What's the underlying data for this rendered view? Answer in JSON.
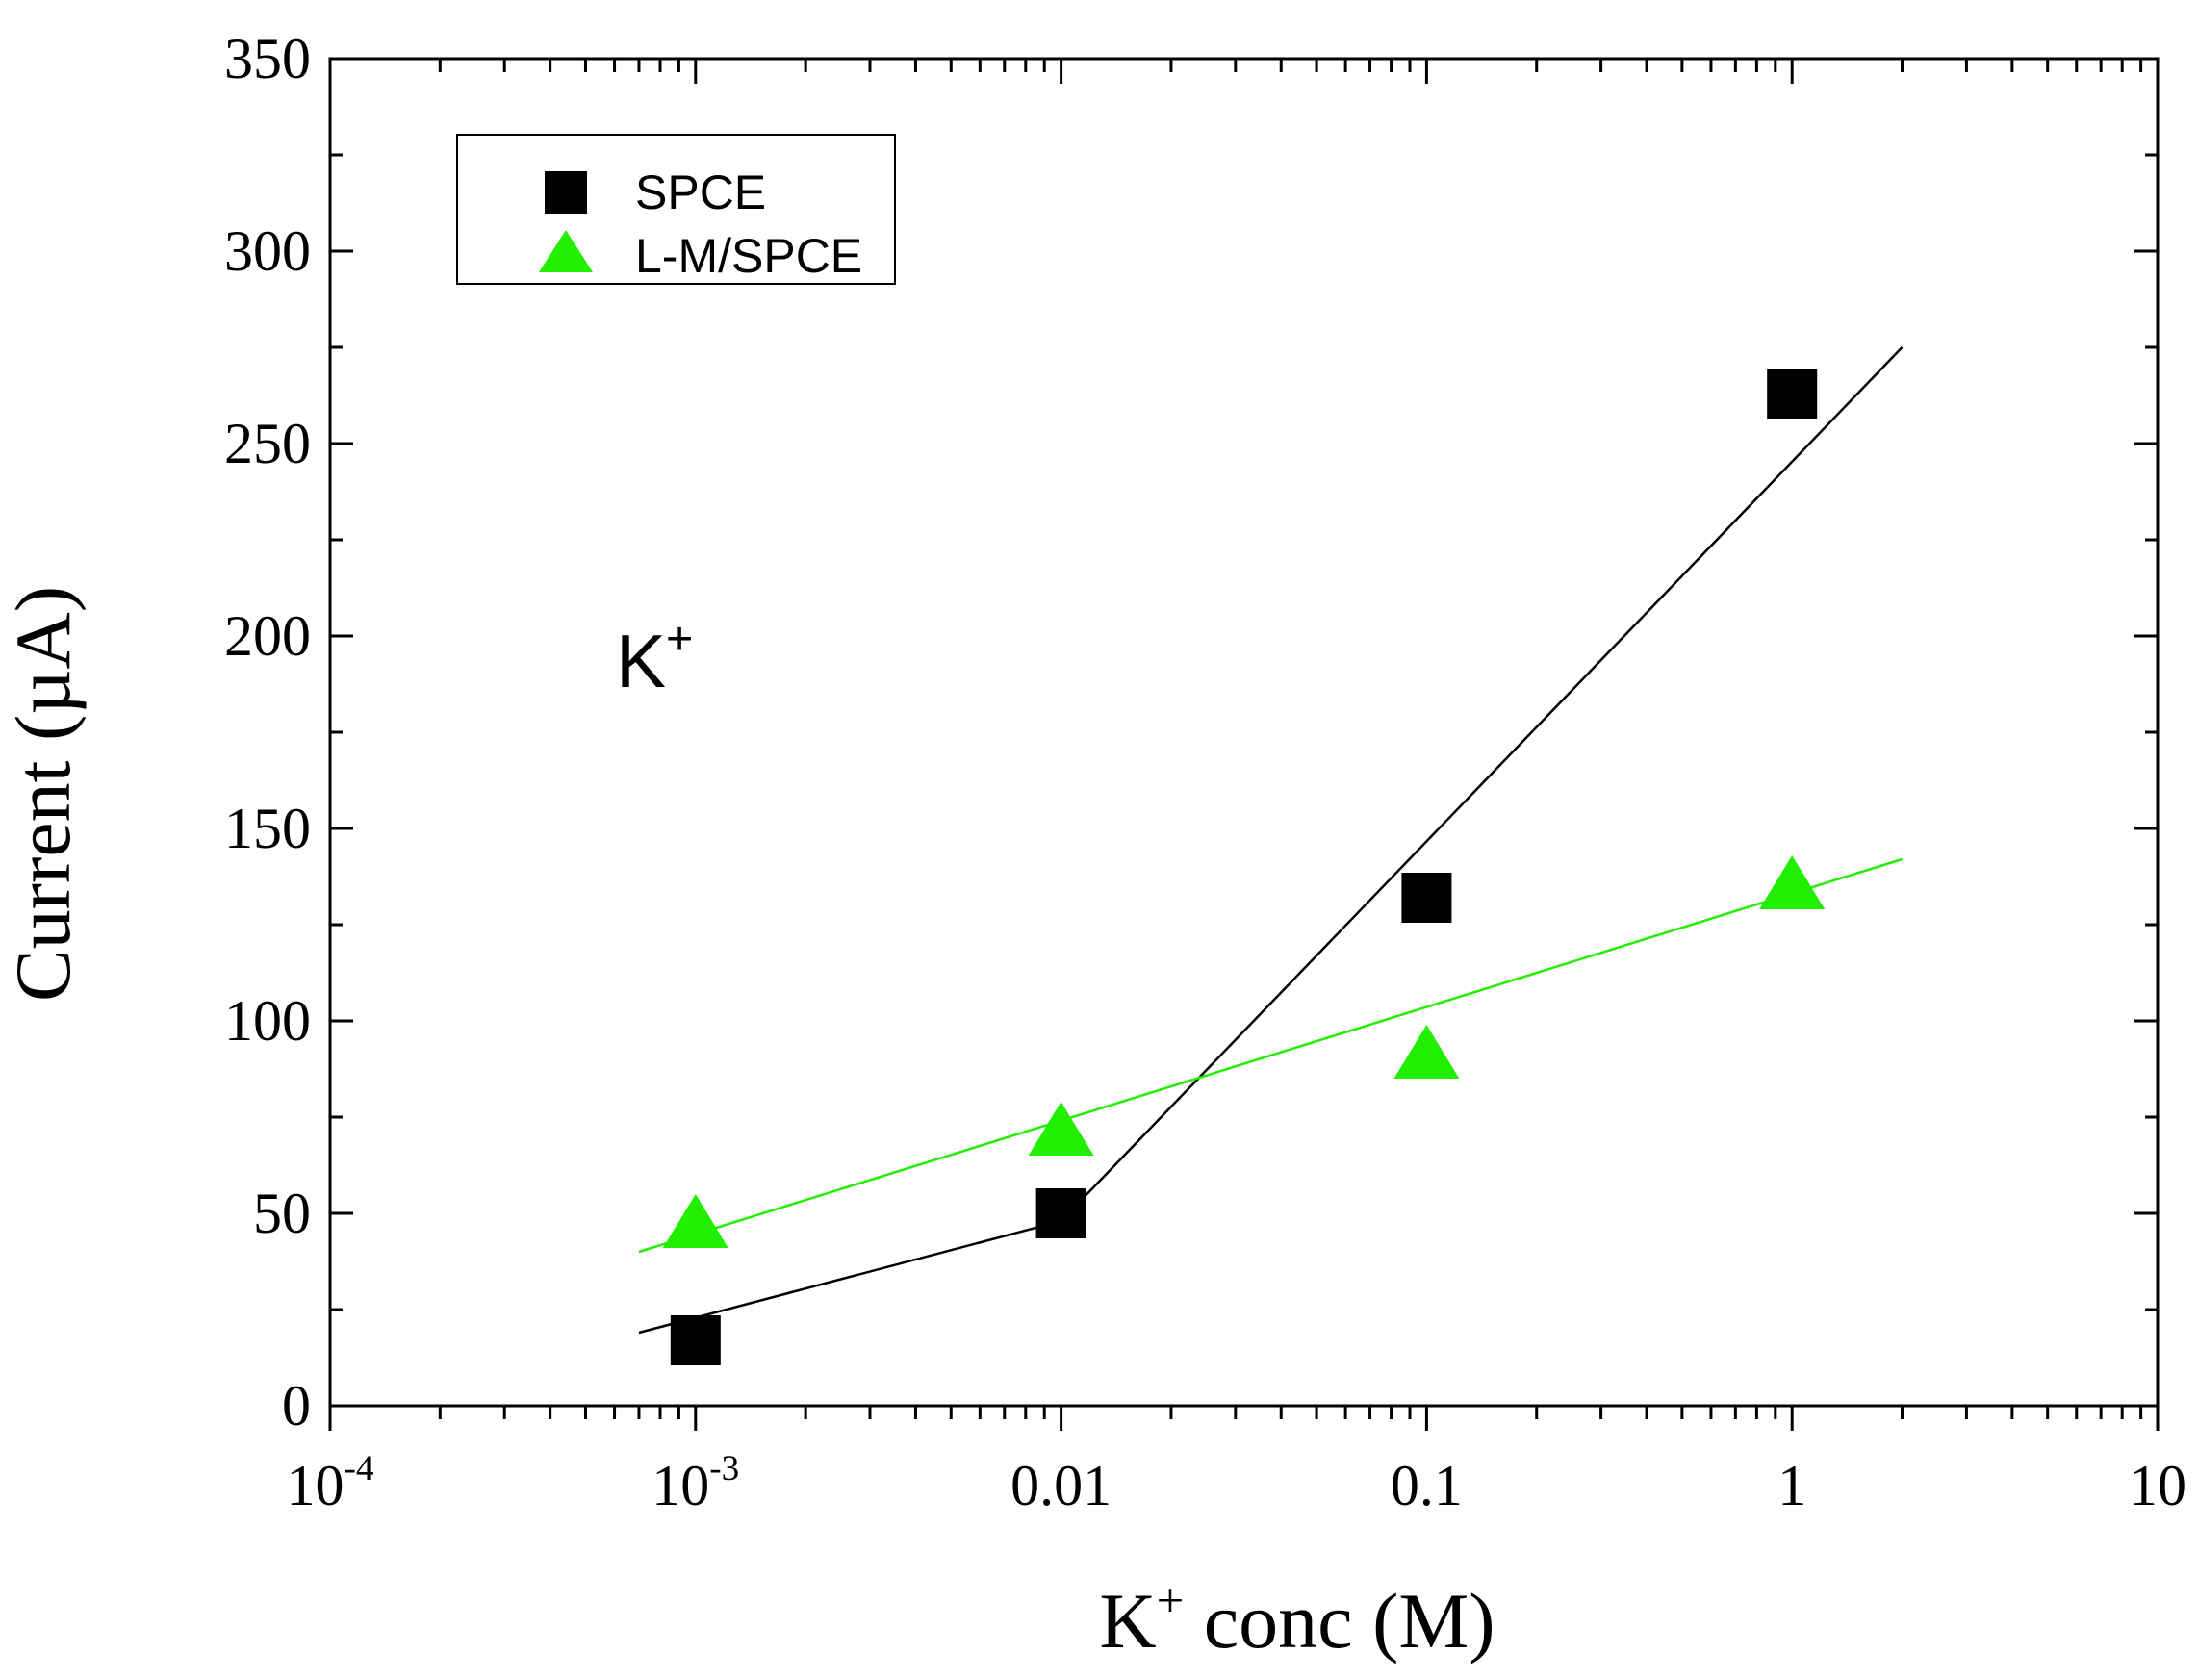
{
  "chart_data": {
    "type": "scatter",
    "x_scale": "log",
    "xlim": [
      0.0001,
      10
    ],
    "ylim": [
      0,
      350
    ],
    "x_ticks": [
      {
        "value": 0.0001,
        "base": "10",
        "exp": "-4"
      },
      {
        "value": 0.001,
        "base": "10",
        "exp": "-3"
      },
      {
        "value": 0.01,
        "label": "0.01"
      },
      {
        "value": 0.1,
        "label": "0.1"
      },
      {
        "value": 1,
        "label": "1"
      },
      {
        "value": 10,
        "label": "10"
      }
    ],
    "y_ticks": [
      0,
      50,
      100,
      150,
      200,
      250,
      300,
      350
    ],
    "xlabel": {
      "pre": "K",
      "sup": "+",
      "post": " conc (M)"
    },
    "ylabel": "Current (µA)",
    "annotation": {
      "text": "K",
      "sup": "+"
    },
    "legend_position": "top-left",
    "series": [
      {
        "name": "SPCE",
        "marker": "square",
        "color": "#000000",
        "points": [
          {
            "x": 0.001,
            "y": 17
          },
          {
            "x": 0.01,
            "y": 50
          },
          {
            "x": 0.1,
            "y": 132
          },
          {
            "x": 1,
            "y": 263
          }
        ],
        "fit_lines": [
          {
            "x": [
              0.0007,
              0.01
            ],
            "y": [
              19,
              48
            ]
          },
          {
            "x": [
              0.01,
              2
            ],
            "y": [
              48,
              275
            ]
          }
        ]
      },
      {
        "name": "L-M/SPCE",
        "marker": "triangle",
        "color": "#22ee00",
        "points": [
          {
            "x": 0.001,
            "y": 47
          },
          {
            "x": 0.01,
            "y": 71
          },
          {
            "x": 0.1,
            "y": 91
          },
          {
            "x": 1,
            "y": 135
          }
        ],
        "fit_lines": [
          {
            "x": [
              0.0007,
              2
            ],
            "y": [
              40,
              142
            ]
          }
        ]
      }
    ]
  }
}
